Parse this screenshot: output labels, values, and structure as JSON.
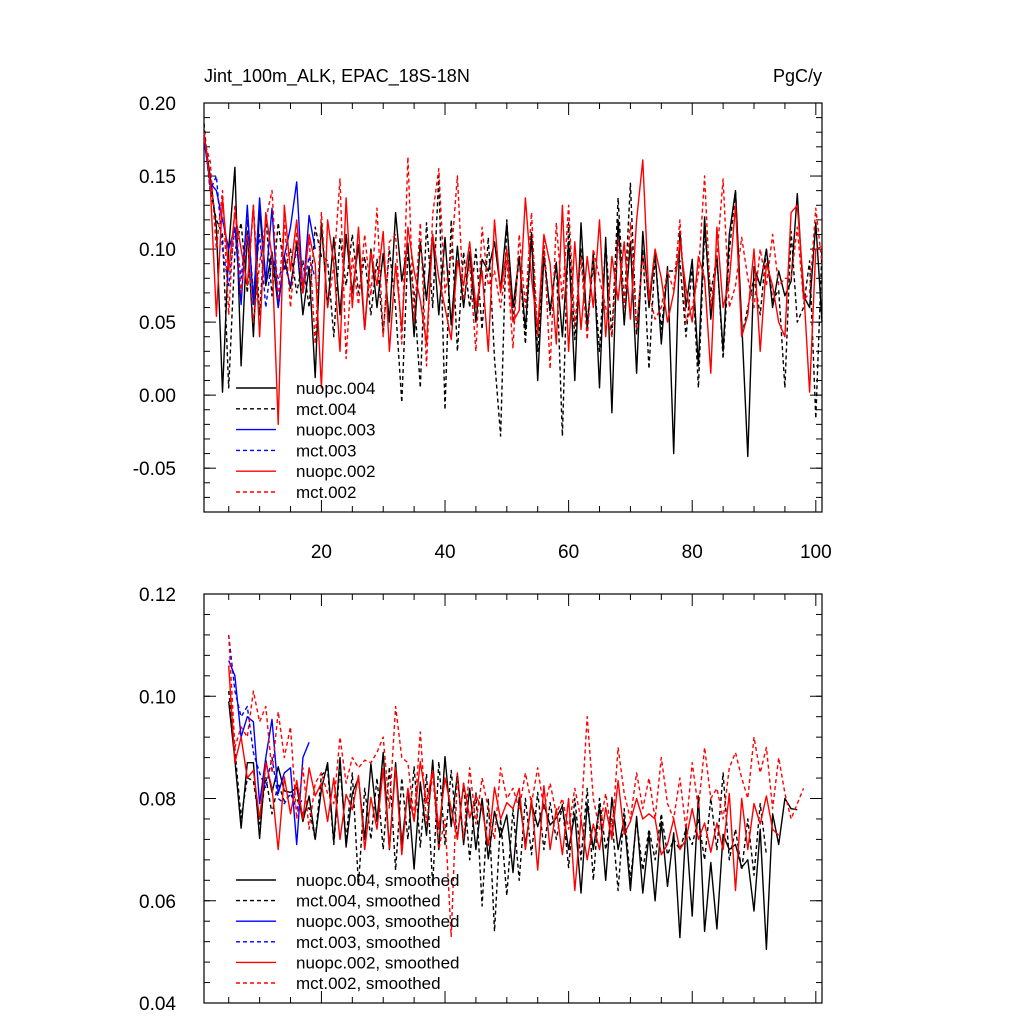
{
  "chart_data": [
    {
      "type": "line",
      "title": "Jint_100m_ALK, EPAC_18S-18N",
      "units": "PgC/y",
      "xlim": [
        1,
        101
      ],
      "ylim": [
        -0.08,
        0.2
      ],
      "x_ticks": [
        20,
        40,
        60,
        80,
        100
      ],
      "x_tick_labels": [
        "20",
        "40",
        "60",
        "80",
        "100"
      ],
      "y_ticks": [
        -0.05,
        0.0,
        0.05,
        0.1,
        0.15,
        0.2
      ],
      "y_tick_labels": [
        "-0.05",
        "0.00",
        "0.05",
        "0.10",
        "0.15",
        "0.20"
      ],
      "series": [
        {
          "name": "nuopc.004",
          "color": "#000000",
          "dash": "solid",
          "x_start": 1,
          "values": [
            0.178,
            0.15,
            0.115,
            0.002,
            0.1,
            0.156,
            0.02,
            0.112,
            0.04,
            0.128,
            0.075,
            0.098,
            0.06,
            0.095,
            0.073,
            0.105,
            0.055,
            0.088,
            0.012,
            0.118,
            0.06,
            0.108,
            0.055,
            0.11,
            0.07,
            0.103,
            0.045,
            0.1,
            0.06,
            0.097,
            0.05,
            0.125,
            0.078,
            0.104,
            0.04,
            0.105,
            0.065,
            0.11,
            0.055,
            0.108,
            0.048,
            0.102,
            0.06,
            0.098,
            0.05,
            0.093,
            0.085,
            0.105,
            0.072,
            0.118,
            0.06,
            0.095,
            0.045,
            0.11,
            0.01,
            0.095,
            0.058,
            0.09,
            0.04,
            0.105,
            0.01,
            0.118,
            0.045,
            0.098,
            0.005,
            0.108,
            -0.012,
            0.12,
            0.048,
            0.105,
            0.015,
            0.112,
            0.06,
            0.098,
            0.035,
            0.088,
            -0.04,
            0.112,
            0.06,
            0.093,
            0.02,
            0.122,
            0.052,
            0.095,
            0.03,
            0.11,
            0.14,
            0.05,
            -0.042,
            0.088,
            0.075,
            0.1,
            0.06,
            0.085,
            0.068,
            0.078,
            0.138,
            0.068,
            0.06,
            0.118,
            0.05
          ]
        },
        {
          "name": "mct.004",
          "color": "#000000",
          "dash": "dash",
          "x_start": 1,
          "values": [
            0.186,
            0.14,
            0.12,
            0.11,
            0.005,
            0.098,
            0.118,
            0.07,
            0.13,
            0.055,
            0.122,
            0.068,
            0.118,
            0.085,
            0.1,
            0.07,
            0.092,
            0.06,
            0.115,
            0.095,
            0.092,
            0.04,
            0.108,
            0.075,
            0.11,
            0.07,
            0.095,
            0.055,
            0.093,
            0.042,
            0.1,
            0.06,
            -0.005,
            0.098,
            0.07,
            0.005,
            0.118,
            0.06,
            0.15,
            -0.01,
            0.12,
            0.03,
            0.098,
            0.06,
            0.1,
            0.045,
            0.108,
            0.025,
            -0.028,
            0.12,
            0.05,
            0.095,
            0.035,
            0.112,
            0.03,
            0.1,
            0.055,
            0.092,
            -0.028,
            0.118,
            0.038,
            0.1,
            0.05,
            0.09,
            0.03,
            0.105,
            0.04,
            0.135,
            0.06,
            0.145,
            0.042,
            0.1,
            0.018,
            0.095,
            0.045,
            0.085,
            0.085,
            0.092,
            0.04,
            0.088,
            0.005,
            0.112,
            0.07,
            0.095,
            0.025,
            0.098,
            0.14,
            0.04,
            0.06,
            0.08,
            0.055,
            0.1,
            0.065,
            0.072,
            0.005,
            0.112,
            0.05,
            0.06,
            0.092,
            -0.016,
            0.1
          ]
        },
        {
          "name": "nuopc.003",
          "color": "#0000ff",
          "dash": "solid",
          "x_start": 1,
          "values": [
            0.175,
            0.145,
            0.14,
            0.12,
            0.1,
            0.115,
            0.062,
            0.13,
            0.062,
            0.135,
            0.078,
            0.128,
            0.06,
            0.095,
            0.115,
            0.146,
            0.07,
            0.123,
            0.1
          ]
        },
        {
          "name": "mct.003",
          "color": "#0000ff",
          "dash": "dash",
          "x_start": 1,
          "values": [
            0.18,
            0.14,
            0.15,
            0.1,
            0.075,
            0.115,
            0.08,
            0.12,
            0.07,
            0.11,
            0.06,
            0.095,
            0.08,
            0.09,
            0.075,
            0.1,
            0.07,
            0.095,
            0.08
          ]
        },
        {
          "name": "nuopc.002",
          "color": "#ff0000",
          "dash": "solid",
          "x_start": 1,
          "values": [
            0.18,
            0.145,
            0.054,
            0.135,
            0.085,
            0.125,
            0.1,
            0.075,
            0.13,
            0.04,
            0.125,
            0.095,
            -0.02,
            0.13,
            0.085,
            0.12,
            0.07,
            0.11,
            0.09,
            0.005,
            0.12,
            0.09,
            0.03,
            0.135,
            0.06,
            0.115,
            0.045,
            0.098,
            0.075,
            0.112,
            0.03,
            0.09,
            0.045,
            0.115,
            0.085,
            0.065,
            0.035,
            0.11,
            0.08,
            0.06,
            0.038,
            0.092,
            0.075,
            0.105,
            0.06,
            0.085,
            0.03,
            0.12,
            0.07,
            0.1,
            0.05,
            0.058,
            0.135,
            0.08,
            0.045,
            0.11,
            0.09,
            0.035,
            0.13,
            0.03,
            0.105,
            0.045,
            0.095,
            0.06,
            0.12,
            0.04,
            0.095,
            0.065,
            0.105,
            0.052,
            0.12,
            0.161,
            0.065,
            0.1,
            0.08,
            0.05,
            0.07,
            0.105,
            0.073,
            0.05,
            0.095,
            0.08,
            0.015,
            0.115,
            0.06,
            0.078,
            0.13,
            0.04,
            0.055,
            0.1,
            0.03,
            0.09,
            0.075,
            0.05,
            0.04,
            0.125,
            0.13,
            0.075,
            0.002,
            0.1,
            0.102
          ]
        },
        {
          "name": "mct.002",
          "color": "#ff0000",
          "dash": "dash",
          "x_start": 1,
          "values": [
            0.175,
            0.16,
            0.1,
            0.14,
            0.055,
            0.13,
            0.07,
            0.11,
            0.05,
            0.09,
            0.12,
            0.14,
            0.065,
            0.12,
            0.06,
            0.112,
            0.075,
            0.108,
            0.035,
            0.125,
            0.06,
            0.088,
            0.148,
            0.025,
            0.095,
            0.062,
            0.11,
            0.068,
            0.128,
            0.04,
            0.105,
            0.11,
            0.035,
            0.163,
            0.05,
            0.118,
            0.02,
            0.124,
            0.155,
            0.07,
            0.095,
            0.15,
            0.065,
            0.09,
            0.03,
            0.115,
            0.075,
            0.085,
            0.06,
            0.092,
            0.032,
            0.11,
            0.06,
            0.125,
            0.04,
            0.108,
            0.018,
            0.118,
            0.065,
            0.13,
            0.048,
            0.094,
            0.038,
            0.1,
            0.08,
            0.06,
            0.04,
            0.107,
            0.06,
            0.118,
            0.045,
            0.095,
            0.07,
            0.052,
            0.06,
            0.085,
            0.072,
            0.12,
            0.05,
            0.06,
            0.083,
            0.15,
            0.06,
            0.095,
            0.148,
            0.06,
            0.075,
            0.108,
            0.08,
            0.06,
            0.1,
            0.075,
            0.11,
            0.075,
            0.08,
            0.08,
            0.115,
            0.065,
            0.07,
            0.128,
            0.09
          ]
        }
      ],
      "legend": {
        "position": "bottom-left"
      }
    },
    {
      "type": "line",
      "title": "",
      "xlim": [
        1,
        101
      ],
      "ylim": [
        0.04,
        0.12
      ],
      "x_ticks": [
        20,
        40,
        60,
        80,
        100
      ],
      "x_tick_labels": [],
      "y_ticks": [
        0.04,
        0.06,
        0.08,
        0.1,
        0.12
      ],
      "y_tick_labels": [
        "0.04",
        "0.06",
        "0.08",
        "0.10",
        "0.12"
      ],
      "series": [
        {
          "name": "nuopc.004, smoothed",
          "color": "#000000",
          "dash": "solid",
          "x_start": 5,
          "values": [
            0.099,
            0.0875,
            0.0742,
            0.087,
            0.087,
            0.0722,
            0.0875,
            0.0812,
            0.0862,
            0.0815,
            0.0812,
            0.0822,
            0.0755,
            0.0805,
            0.072,
            0.0818,
            0.087,
            0.0715,
            0.088,
            0.0705,
            0.081,
            0.084,
            0.072,
            0.0868,
            0.0755,
            0.089,
            0.07,
            0.087,
            0.071,
            0.0818,
            0.0662,
            0.0832,
            0.0728,
            0.0875,
            0.07,
            0.0882,
            0.0745,
            0.0848,
            0.071,
            0.082,
            0.07,
            0.08,
            0.0682,
            0.0775,
            0.0725,
            0.0768,
            0.0655,
            0.0802,
            0.071,
            0.079,
            0.0745,
            0.0788,
            0.0748,
            0.0762,
            0.0785,
            0.07,
            0.077,
            0.0615,
            0.079,
            0.07,
            0.0785,
            0.064,
            0.0802,
            0.07,
            0.076,
            0.062,
            0.0765,
            0.0615,
            0.073,
            0.06,
            0.0755,
            0.0628,
            0.0733,
            0.0528,
            0.0748,
            0.057,
            0.0805,
            0.054,
            0.0675,
            0.0545,
            0.073,
            0.07,
            0.071,
            0.0665,
            0.068,
            0.058,
            0.074,
            0.0505,
            0.077,
            0.071,
            0.08,
            0.078,
            0.0778
          ]
        },
        {
          "name": "mct.004, smoothed",
          "color": "#000000",
          "dash": "dash",
          "x_start": 5,
          "values": [
            0.101,
            0.0895,
            0.0762,
            0.084,
            0.0835,
            0.075,
            0.0842,
            0.077,
            0.083,
            0.0795,
            0.0808,
            0.08,
            0.0772,
            0.0782,
            0.072,
            0.0845,
            0.0858,
            0.071,
            0.0862,
            0.0718,
            0.085,
            0.063,
            0.082,
            0.072,
            0.084,
            0.07,
            0.0862,
            0.066,
            0.084,
            0.072,
            0.0862,
            0.0705,
            0.0848,
            0.063,
            0.0872,
            0.071,
            0.0855,
            0.0725,
            0.083,
            0.068,
            0.0812,
            0.059,
            0.08,
            0.054,
            0.076,
            0.061,
            0.078,
            0.064,
            0.08,
            0.069,
            0.0812,
            0.07,
            0.0792,
            0.072,
            0.0788,
            0.0665,
            0.08,
            0.068,
            0.082,
            0.064,
            0.08,
            0.07,
            0.076,
            0.062,
            0.078,
            0.064,
            0.0755,
            0.066,
            0.074,
            0.068,
            0.077,
            0.069,
            0.072,
            0.07,
            0.074,
            0.071,
            0.076,
            0.068,
            0.08,
            0.07,
            0.085,
            0.068,
            0.074,
            0.066,
            0.076,
            0.065,
            0.079,
            0.069
          ]
        },
        {
          "name": "nuopc.003, smoothed",
          "color": "#0000ff",
          "dash": "solid",
          "x_start": 5,
          "values": [
            0.107,
            0.104,
            0.092,
            0.096,
            0.095,
            0.079,
            0.088,
            0.0955,
            0.081,
            0.085,
            0.086,
            0.071,
            0.088,
            0.091
          ]
        },
        {
          "name": "mct.003, smoothed",
          "color": "#0000ff",
          "dash": "dash",
          "x_start": 5,
          "values": [
            0.112,
            0.101,
            0.096,
            0.098,
            0.089,
            0.085,
            0.082,
            0.088,
            0.08,
            0.079,
            0.081,
            0.078,
            0.08
          ]
        },
        {
          "name": "nuopc.002, smoothed",
          "color": "#ff0000",
          "dash": "solid",
          "x_start": 5,
          "values": [
            0.106,
            0.087,
            0.092,
            0.084,
            0.0855,
            0.076,
            0.087,
            0.082,
            0.07,
            0.0842,
            0.077,
            0.0835,
            0.076,
            0.086,
            0.0805,
            0.083,
            0.0755,
            0.084,
            0.072,
            0.0808,
            0.0778,
            0.0845,
            0.07,
            0.0802,
            0.074,
            0.0858,
            0.0702,
            0.086,
            0.069,
            0.082,
            0.0755,
            0.0872,
            0.0792,
            0.0855,
            0.074,
            0.084,
            0.078,
            0.072,
            0.083,
            0.0762,
            0.0805,
            0.078,
            0.0708,
            0.0822,
            0.076,
            0.0792,
            0.078,
            0.082,
            0.07,
            0.08,
            0.066,
            0.0825,
            0.07,
            0.078,
            0.069,
            0.08,
            0.062,
            0.076,
            0.068,
            0.075,
            0.07,
            0.0782,
            0.072,
            0.0835,
            0.073,
            0.0755,
            0.08,
            0.076,
            0.077,
            0.076,
            0.069,
            0.071,
            0.076,
            0.07,
            0.072,
            0.078,
            0.072,
            0.0752,
            0.0695,
            0.0752,
            0.07,
            0.081,
            0.062,
            0.08,
            0.07,
            0.079,
            0.075,
            0.0805,
            0.074,
            0.0728
          ]
        },
        {
          "name": "mct.002, smoothed",
          "color": "#ff0000",
          "dash": "dash",
          "x_start": 5,
          "values": [
            0.112,
            0.09,
            0.094,
            0.092,
            0.101,
            0.095,
            0.098,
            0.085,
            0.097,
            0.088,
            0.094,
            0.076,
            0.086,
            0.074,
            0.083,
            0.085,
            0.081,
            0.079,
            0.092,
            0.083,
            0.088,
            0.086,
            0.0875,
            0.087,
            0.089,
            0.092,
            0.078,
            0.098,
            0.088,
            0.087,
            0.076,
            0.093,
            0.075,
            0.085,
            0.07,
            0.076,
            0.053,
            0.085,
            0.072,
            0.086,
            0.075,
            0.084,
            0.078,
            0.072,
            0.086,
            0.08,
            0.082,
            0.078,
            0.085,
            0.079,
            0.086,
            0.078,
            0.083,
            0.077,
            0.08,
            0.074,
            0.082,
            0.076,
            0.096,
            0.08,
            0.074,
            0.081,
            0.073,
            0.09,
            0.081,
            0.076,
            0.085,
            0.078,
            0.084,
            0.076,
            0.088,
            0.079,
            0.076,
            0.084,
            0.074,
            0.087,
            0.078,
            0.09,
            0.08,
            0.082,
            0.076,
            0.086,
            0.089,
            0.084,
            0.08,
            0.092,
            0.085,
            0.09,
            0.078,
            0.088,
            0.081,
            0.076,
            0.079,
            0.082
          ]
        }
      ],
      "legend": {
        "position": "bottom-left"
      }
    }
  ]
}
